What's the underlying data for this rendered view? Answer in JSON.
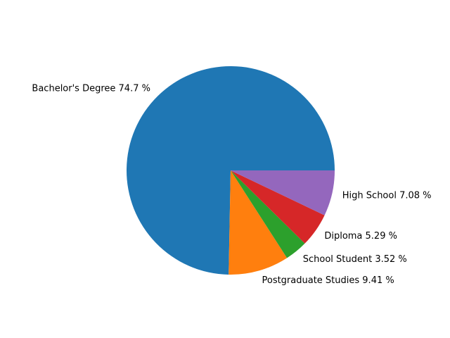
{
  "chart_data": {
    "type": "pie",
    "title": "",
    "slices": [
      {
        "label": "Bachelor's Degree",
        "percent": 74.7,
        "display": "Bachelor's Degree 74.7 %",
        "color": "#1f77b4"
      },
      {
        "label": "Postgraduate Studies",
        "percent": 9.41,
        "display": "Postgraduate Studies 9.41 %",
        "color": "#ff7f0e"
      },
      {
        "label": "School Student",
        "percent": 3.52,
        "display": "School Student 3.52 %",
        "color": "#2ca02c"
      },
      {
        "label": "Diploma",
        "percent": 5.29,
        "display": "Diploma 5.29 %",
        "color": "#d62728"
      },
      {
        "label": "High School",
        "percent": 7.08,
        "display": "High School 7.08 %",
        "color": "#9467bd"
      }
    ],
    "start_angle_deg": 0,
    "direction": "counterclockwise"
  }
}
